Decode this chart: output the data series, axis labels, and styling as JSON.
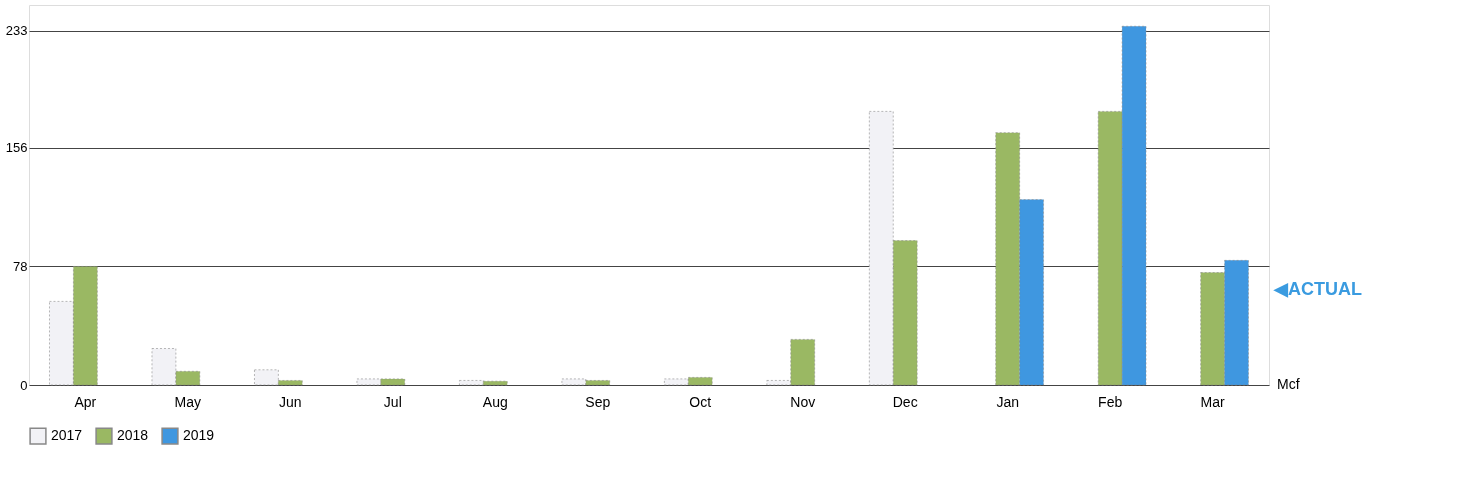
{
  "chart_data": {
    "type": "bar",
    "ylabel": "Mcf",
    "categories": [
      "Apr",
      "May",
      "Jun",
      "Jul",
      "Aug",
      "Sep",
      "Oct",
      "Nov",
      "Dec",
      "Jan",
      "Feb",
      "Mar"
    ],
    "series": [
      {
        "name": "2017",
        "color": "#f2f2f6",
        "values": [
          55,
          24,
          10,
          4,
          3,
          4,
          4,
          3,
          180,
          null,
          null,
          null
        ]
      },
      {
        "name": "2018",
        "color": "#9ab863",
        "values": [
          78,
          9,
          3,
          4,
          2.5,
          3,
          5,
          30,
          95,
          166,
          180,
          74
        ]
      },
      {
        "name": "2019",
        "color": "#3f97e0",
        "values": [
          null,
          null,
          null,
          null,
          null,
          null,
          null,
          null,
          null,
          122,
          236,
          82
        ]
      }
    ],
    "ylim": [
      0,
      250
    ],
    "yticks": [
      0,
      78,
      156,
      233
    ],
    "grid": "y",
    "legend": "bottom",
    "annotations": [
      "◀ACTUAL"
    ]
  }
}
